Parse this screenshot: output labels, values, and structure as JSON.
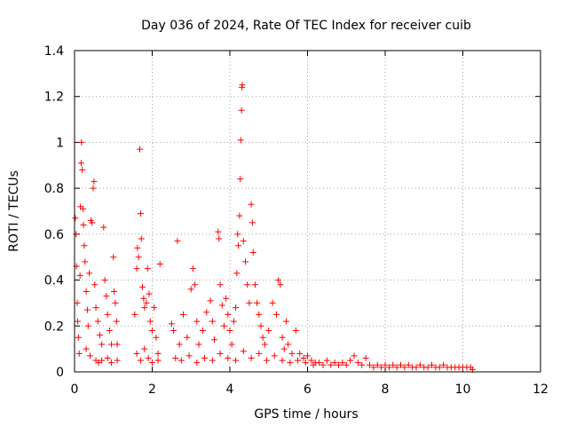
{
  "chart_data": {
    "type": "scatter",
    "title": "Day 036 of 2024, Rate Of TEC Index for receiver cuib",
    "xlabel": "GPS time / hours",
    "ylabel": "ROTI / TECUs",
    "xlim": [
      0,
      12
    ],
    "ylim": [
      0,
      1.4
    ],
    "x_ticks": [
      0,
      2,
      4,
      6,
      8,
      10,
      12
    ],
    "x_tick_labels": [
      "0",
      "2",
      "4",
      "6",
      "8",
      "10",
      "12"
    ],
    "y_ticks": [
      0,
      0.2,
      0.4,
      0.6,
      0.8,
      1,
      1.2,
      1.4
    ],
    "y_tick_labels": [
      "0",
      "0.2",
      "0.4",
      "0.6",
      "0.8",
      "1",
      "1.2",
      "1.4"
    ],
    "grid": true,
    "marker": "+",
    "marker_color": "#ff0000",
    "series": [
      {
        "name": "ROTI",
        "points": [
          [
            0.02,
            0.67
          ],
          [
            0.04,
            0.6
          ],
          [
            0.05,
            0.46
          ],
          [
            0.07,
            0.3
          ],
          [
            0.08,
            0.22
          ],
          [
            0.1,
            0.15
          ],
          [
            0.12,
            0.08
          ],
          [
            0.14,
            0.42
          ],
          [
            0.15,
            0.72
          ],
          [
            0.17,
            0.91
          ],
          [
            0.18,
            1.0
          ],
          [
            0.2,
            0.88
          ],
          [
            0.22,
            0.71
          ],
          [
            0.23,
            0.64
          ],
          [
            0.25,
            0.55
          ],
          [
            0.27,
            0.48
          ],
          [
            0.3,
            0.35
          ],
          [
            0.33,
            0.27
          ],
          [
            0.35,
            0.2
          ],
          [
            0.38,
            0.43
          ],
          [
            0.42,
            0.66
          ],
          [
            0.45,
            0.65
          ],
          [
            0.48,
            0.8
          ],
          [
            0.5,
            0.83
          ],
          [
            0.52,
            0.38
          ],
          [
            0.55,
            0.28
          ],
          [
            0.6,
            0.22
          ],
          [
            0.65,
            0.16
          ],
          [
            0.7,
            0.12
          ],
          [
            0.75,
            0.63
          ],
          [
            0.78,
            0.4
          ],
          [
            0.82,
            0.33
          ],
          [
            0.85,
            0.25
          ],
          [
            0.9,
            0.18
          ],
          [
            0.95,
            0.12
          ],
          [
            1.0,
            0.5
          ],
          [
            1.02,
            0.35
          ],
          [
            1.05,
            0.3
          ],
          [
            1.08,
            0.22
          ],
          [
            1.1,
            0.12
          ],
          [
            0.3,
            0.1
          ],
          [
            0.4,
            0.07
          ],
          [
            0.55,
            0.05
          ],
          [
            0.62,
            0.04
          ],
          [
            0.7,
            0.05
          ],
          [
            0.85,
            0.06
          ],
          [
            0.95,
            0.04
          ],
          [
            1.1,
            0.05
          ],
          [
            1.55,
            0.25
          ],
          [
            1.6,
            0.45
          ],
          [
            1.62,
            0.54
          ],
          [
            1.65,
            0.5
          ],
          [
            1.68,
            0.97
          ],
          [
            1.7,
            0.69
          ],
          [
            1.72,
            0.58
          ],
          [
            1.75,
            0.37
          ],
          [
            1.78,
            0.32
          ],
          [
            1.8,
            0.28
          ],
          [
            1.85,
            0.3
          ],
          [
            1.88,
            0.45
          ],
          [
            1.92,
            0.34
          ],
          [
            1.95,
            0.22
          ],
          [
            2.0,
            0.18
          ],
          [
            2.05,
            0.28
          ],
          [
            2.1,
            0.15
          ],
          [
            2.15,
            0.08
          ],
          [
            2.2,
            0.47
          ],
          [
            1.6,
            0.08
          ],
          [
            1.7,
            0.05
          ],
          [
            1.8,
            0.1
          ],
          [
            1.9,
            0.06
          ],
          [
            2.0,
            0.04
          ],
          [
            2.15,
            0.05
          ],
          [
            2.5,
            0.21
          ],
          [
            2.55,
            0.18
          ],
          [
            2.65,
            0.57
          ],
          [
            2.7,
            0.12
          ],
          [
            2.8,
            0.25
          ],
          [
            2.9,
            0.15
          ],
          [
            3.0,
            0.36
          ],
          [
            3.05,
            0.45
          ],
          [
            3.1,
            0.38
          ],
          [
            3.15,
            0.22
          ],
          [
            3.2,
            0.12
          ],
          [
            3.3,
            0.18
          ],
          [
            3.4,
            0.26
          ],
          [
            3.5,
            0.31
          ],
          [
            3.55,
            0.22
          ],
          [
            3.6,
            0.14
          ],
          [
            3.7,
            0.61
          ],
          [
            3.72,
            0.58
          ],
          [
            3.75,
            0.38
          ],
          [
            3.8,
            0.29
          ],
          [
            3.85,
            0.2
          ],
          [
            3.9,
            0.32
          ],
          [
            3.95,
            0.25
          ],
          [
            4.0,
            0.18
          ],
          [
            4.05,
            0.12
          ],
          [
            4.1,
            0.22
          ],
          [
            4.15,
            0.28
          ],
          [
            4.18,
            0.43
          ],
          [
            4.2,
            0.6
          ],
          [
            4.22,
            0.55
          ],
          [
            4.25,
            0.68
          ],
          [
            4.27,
            0.84
          ],
          [
            4.28,
            1.01
          ],
          [
            4.3,
            1.14
          ],
          [
            4.31,
            1.24
          ],
          [
            4.32,
            1.25
          ],
          [
            4.35,
            0.57
          ],
          [
            4.4,
            0.48
          ],
          [
            4.45,
            0.38
          ],
          [
            4.5,
            0.3
          ],
          [
            4.55,
            0.73
          ],
          [
            4.58,
            0.65
          ],
          [
            4.6,
            0.52
          ],
          [
            4.65,
            0.38
          ],
          [
            4.7,
            0.3
          ],
          [
            4.75,
            0.25
          ],
          [
            4.8,
            0.2
          ],
          [
            4.85,
            0.15
          ],
          [
            4.9,
            0.12
          ],
          [
            5.0,
            0.18
          ],
          [
            5.1,
            0.3
          ],
          [
            5.2,
            0.25
          ],
          [
            5.25,
            0.4
          ],
          [
            5.3,
            0.38
          ],
          [
            5.35,
            0.15
          ],
          [
            5.4,
            0.1
          ],
          [
            5.45,
            0.22
          ],
          [
            5.5,
            0.12
          ],
          [
            5.6,
            0.08
          ],
          [
            5.7,
            0.18
          ],
          [
            5.8,
            0.08
          ],
          [
            5.9,
            0.06
          ],
          [
            6.0,
            0.07
          ],
          [
            6.1,
            0.05
          ],
          [
            6.2,
            0.04
          ],
          [
            2.6,
            0.06
          ],
          [
            2.75,
            0.05
          ],
          [
            2.95,
            0.07
          ],
          [
            3.15,
            0.04
          ],
          [
            3.35,
            0.06
          ],
          [
            3.55,
            0.05
          ],
          [
            3.75,
            0.08
          ],
          [
            3.95,
            0.06
          ],
          [
            4.15,
            0.05
          ],
          [
            4.35,
            0.09
          ],
          [
            4.55,
            0.06
          ],
          [
            4.75,
            0.08
          ],
          [
            4.95,
            0.05
          ],
          [
            5.15,
            0.07
          ],
          [
            5.35,
            0.05
          ],
          [
            5.55,
            0.04
          ],
          [
            5.75,
            0.05
          ],
          [
            5.95,
            0.04
          ],
          [
            6.15,
            0.03
          ],
          [
            6.3,
            0.04
          ],
          [
            6.4,
            0.03
          ],
          [
            6.5,
            0.05
          ],
          [
            6.6,
            0.03
          ],
          [
            6.7,
            0.04
          ],
          [
            6.8,
            0.03
          ],
          [
            6.9,
            0.04
          ],
          [
            7.0,
            0.03
          ],
          [
            7.1,
            0.05
          ],
          [
            7.2,
            0.07
          ],
          [
            7.3,
            0.04
          ],
          [
            7.4,
            0.03
          ],
          [
            7.5,
            0.06
          ],
          [
            7.6,
            0.03
          ],
          [
            7.7,
            0.02
          ],
          [
            7.8,
            0.03
          ],
          [
            7.9,
            0.02
          ],
          [
            8.0,
            0.03
          ],
          [
            8.1,
            0.02
          ],
          [
            8.2,
            0.03
          ],
          [
            8.3,
            0.02
          ],
          [
            8.4,
            0.03
          ],
          [
            8.5,
            0.02
          ],
          [
            8.6,
            0.03
          ],
          [
            8.7,
            0.02
          ],
          [
            8.8,
            0.02
          ],
          [
            8.9,
            0.03
          ],
          [
            9.0,
            0.02
          ],
          [
            9.1,
            0.02
          ],
          [
            9.2,
            0.03
          ],
          [
            9.3,
            0.02
          ],
          [
            9.4,
            0.02
          ],
          [
            9.5,
            0.03
          ],
          [
            9.6,
            0.02
          ],
          [
            9.7,
            0.02
          ],
          [
            9.8,
            0.02
          ],
          [
            9.9,
            0.02
          ],
          [
            10.0,
            0.02
          ],
          [
            10.1,
            0.02
          ],
          [
            10.2,
            0.02
          ],
          [
            10.25,
            0.01
          ]
        ]
      }
    ]
  }
}
